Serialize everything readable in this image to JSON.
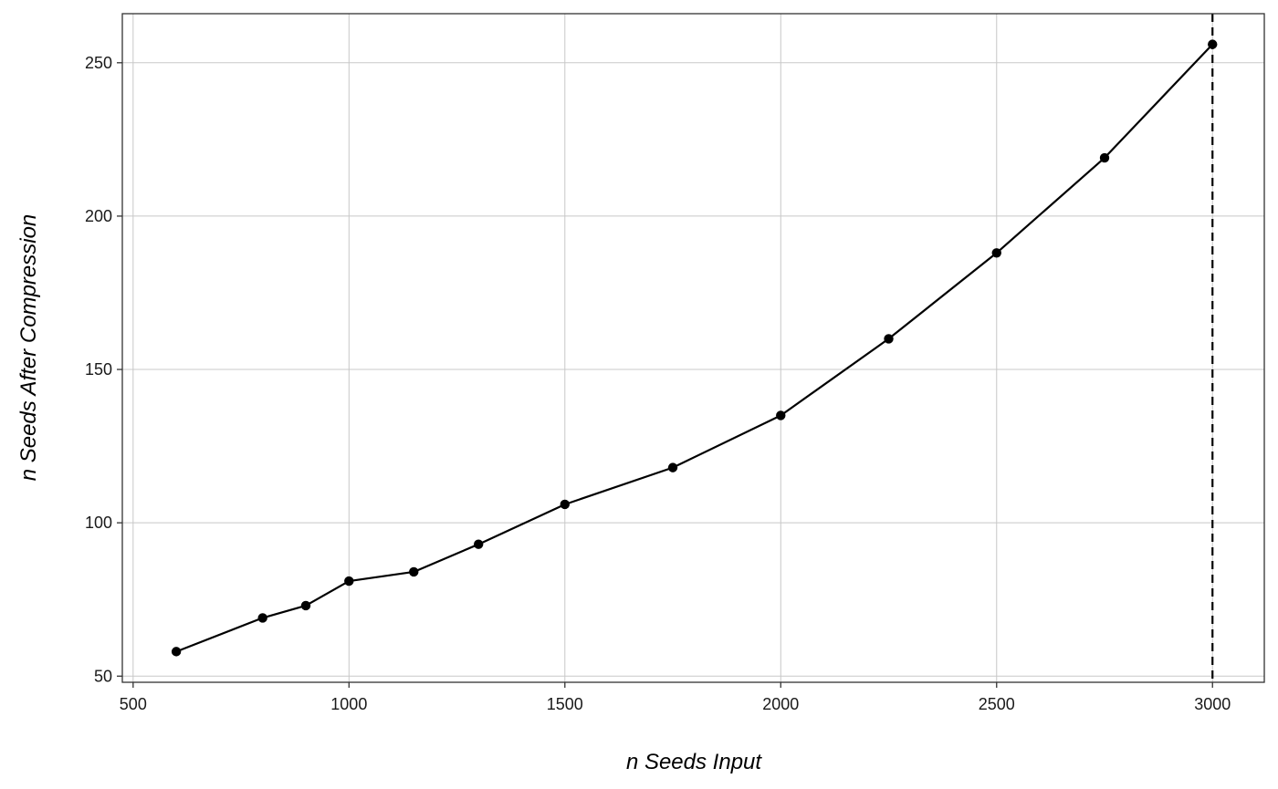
{
  "chart_data": {
    "type": "line",
    "title": "",
    "xlabel": "n Seeds Input",
    "ylabel": "n Seeds After Compression",
    "xlim": [
      475,
      3120
    ],
    "ylim": [
      48,
      266
    ],
    "xticks": [
      500,
      1000,
      1500,
      2000,
      2500,
      3000
    ],
    "yticks": [
      50,
      100,
      150,
      200,
      250
    ],
    "grid": true,
    "legend": "none",
    "series": [
      {
        "x": [
          600,
          800,
          900,
          1000,
          1150,
          1300,
          1500,
          1750,
          2000,
          2250,
          2500,
          2750,
          3000
        ],
        "values": [
          58,
          69,
          73,
          81,
          84,
          93,
          106,
          118,
          135,
          160,
          188,
          219,
          256
        ],
        "color": "#000000",
        "markers": true
      }
    ],
    "reference_lines": [
      {
        "orientation": "vertical",
        "x": 3000,
        "style": "dashed",
        "color": "#000000"
      }
    ],
    "colors": {
      "grid": "#c8c8c8",
      "panel_border": "#333333",
      "line": "#000000"
    }
  }
}
